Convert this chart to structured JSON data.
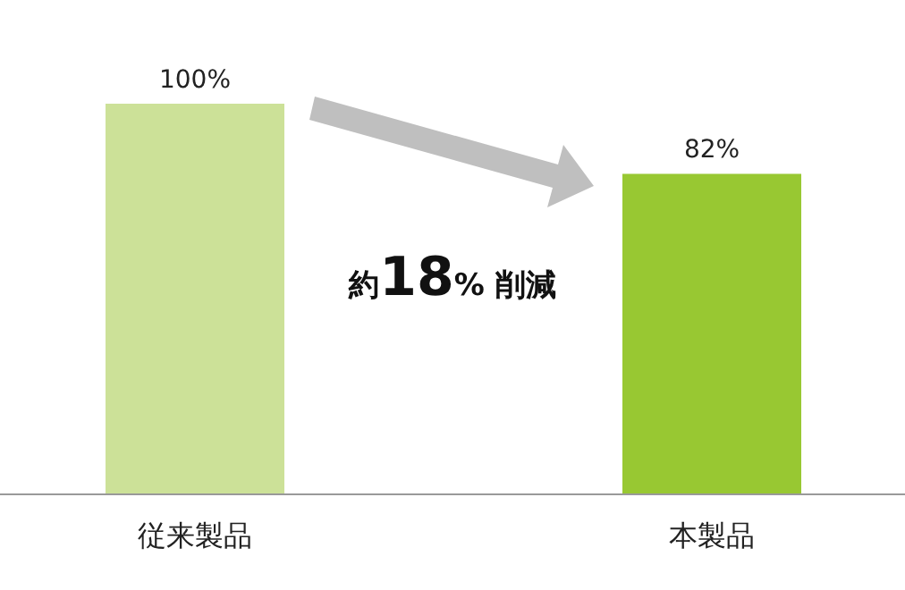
{
  "chart_data": {
    "type": "bar",
    "categories": [
      "従来製品",
      "本製品"
    ],
    "values": [
      100,
      82
    ],
    "colors": [
      "#cce198",
      "#98c832"
    ],
    "value_labels": [
      "100%",
      "82%"
    ],
    "annotations": [
      "約18% 削減"
    ]
  }
}
